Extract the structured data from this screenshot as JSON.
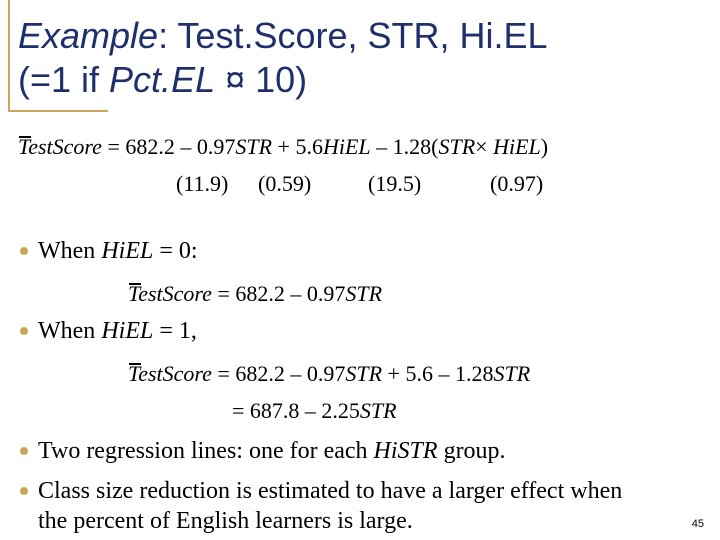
{
  "title": {
    "line1": [
      "Example",
      ": Test.Score, STR, Hi.EL"
    ],
    "line2": [
      "(=1 if ",
      "Pct.EL",
      " ¤ 10)"
    ]
  },
  "regression": {
    "main": [
      "TestScore",
      " = 682.2 – 0.97",
      "STR",
      " + 5.6",
      "HiEL",
      " – 1.28(",
      "STR",
      "× ",
      "HiEL",
      ")"
    ],
    "se": [
      "(11.9)",
      "(0.59)",
      "(19.5)",
      "(0.97)"
    ]
  },
  "bullets": [
    {
      "text": [
        "When ",
        "HiEL",
        " = 0:"
      ]
    },
    {
      "text": [
        "When ",
        "HiEL",
        " = 1,"
      ]
    },
    {
      "text": [
        "Two regression lines: one for each ",
        "HiSTR",
        " group."
      ]
    },
    {
      "text": [
        "Class size reduction is estimated to have a larger effect when",
        "the percent of English learners is large."
      ]
    }
  ],
  "eq_hiel0": [
    "TestScore",
    " = 682.2 – 0.97",
    "STR"
  ],
  "eq_hiel1": [
    "TestScore",
    " = 682.2 – 0.97",
    "STR",
    " + 5.6 – 1.28",
    "STR"
  ],
  "eq_hiel1b": [
    "= 687.8 – 2.25",
    "STR"
  ],
  "page_number": "45",
  "colors": {
    "title": "#1f2f6b",
    "accent": "#c9a65a"
  }
}
